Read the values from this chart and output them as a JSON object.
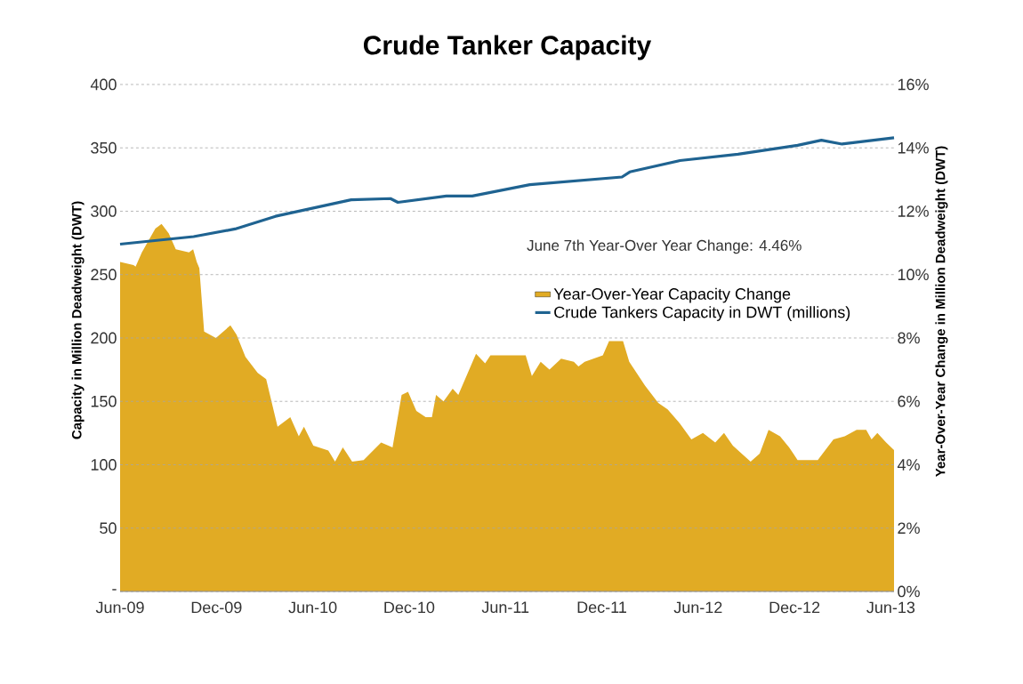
{
  "chart_data": {
    "type": "line",
    "title": "Crude Tanker Capacity",
    "ylabel": "Capacity in Million Deadweight (DWT)",
    "y2label": "Year-Over-Year Change in Million Deadweight (DWT)",
    "annotations": [
      "June 7th Year-Over Year Change: 4.46%"
    ],
    "xlim": [
      "2009-06-01",
      "2013-06-07"
    ],
    "xticks": [
      {
        "value": "2009-06",
        "label": "Jun-09"
      },
      {
        "value": "2009-12",
        "label": "Dec-09"
      },
      {
        "value": "2010-06",
        "label": "Jun-10"
      },
      {
        "value": "2010-12",
        "label": "Dec-10"
      },
      {
        "value": "2011-06",
        "label": "Jun-11"
      },
      {
        "value": "2011-12",
        "label": "Dec-11"
      },
      {
        "value": "2012-06",
        "label": "Jun-12"
      },
      {
        "value": "2012-12",
        "label": "Dec-12"
      },
      {
        "value": "2013-06",
        "label": "Jun-13"
      }
    ],
    "ylim": [
      0,
      400
    ],
    "yticks": [
      {
        "value": 0,
        "label": "-"
      },
      50,
      100,
      150,
      200,
      250,
      300,
      350,
      400
    ],
    "y2lim": [
      0,
      16
    ],
    "y2ticks": [
      {
        "value": 0,
        "label": "0%"
      },
      {
        "value": 2,
        "label": "2%"
      },
      {
        "value": 4,
        "label": "4%"
      },
      {
        "value": 6,
        "label": "6%"
      },
      {
        "value": 8,
        "label": "8%"
      },
      {
        "value": 10,
        "label": "10%"
      },
      {
        "value": 12,
        "label": "12%"
      },
      {
        "value": 14,
        "label": "14%"
      },
      {
        "value": 16,
        "label": "16%"
      }
    ],
    "grid": "y",
    "legend": "right",
    "series": [
      {
        "name": "Year-Over-Year Capacity Change",
        "type": "area",
        "axis": "y2",
        "color": "#e1ab24",
        "x": [
          "2009-06-01",
          "2009-06-26",
          "2009-06-30",
          "2009-07-12",
          "2009-08-07",
          "2009-08-19",
          "2009-09-02",
          "2009-09-15",
          "2009-10-10",
          "2009-10-18",
          "2009-10-25",
          "2009-10-30",
          "2009-11-08",
          "2009-11-30",
          "2009-12-28",
          "2010-01-09",
          "2010-01-26",
          "2010-02-17",
          "2010-03-04",
          "2010-03-26",
          "2010-04-19",
          "2010-05-05",
          "2010-05-15",
          "2010-06-02",
          "2010-06-30",
          "2010-07-13",
          "2010-07-28",
          "2010-08-15",
          "2010-09-06",
          "2010-10-09",
          "2010-10-31",
          "2010-11-17",
          "2010-11-29",
          "2010-12-15",
          "2011-01-02",
          "2011-01-14",
          "2011-01-22",
          "2011-02-05",
          "2011-02-21",
          "2011-03-03",
          "2011-04-06",
          "2011-04-23",
          "2011-05-03",
          "2011-07-09",
          "2011-07-21",
          "2011-08-07",
          "2011-08-24",
          "2011-09-15",
          "2011-10-09",
          "2011-10-18",
          "2011-10-30",
          "2011-12-03",
          "2011-12-15",
          "2012-01-11",
          "2012-01-23",
          "2012-02-21",
          "2012-03-17",
          "2012-04-04",
          "2012-04-27",
          "2012-05-19",
          "2012-06-10",
          "2012-07-03",
          "2012-07-20",
          "2012-08-06",
          "2012-09-09",
          "2012-09-26",
          "2012-10-13",
          "2012-11-04",
          "2012-11-21",
          "2012-12-07",
          "2013-01-15",
          "2013-02-13",
          "2013-03-05",
          "2013-03-28",
          "2013-04-15",
          "2013-04-25",
          "2013-05-06",
          "2013-05-23",
          "2013-06-07"
        ],
        "values": [
          10.4,
          10.3,
          10.25,
          10.7,
          11.45,
          11.6,
          11.3,
          10.8,
          10.7,
          10.8,
          10.4,
          10.2,
          8.2,
          8.0,
          8.4,
          8.1,
          7.4,
          6.9,
          6.7,
          5.2,
          5.5,
          4.9,
          5.2,
          4.6,
          4.45,
          4.1,
          4.55,
          4.1,
          4.15,
          4.7,
          4.55,
          6.2,
          6.3,
          5.7,
          5.5,
          5.5,
          6.2,
          6.0,
          6.4,
          6.2,
          7.5,
          7.2,
          7.45,
          7.45,
          6.8,
          7.25,
          7.0,
          7.35,
          7.25,
          7.1,
          7.25,
          7.45,
          7.9,
          7.9,
          7.25,
          6.5,
          5.95,
          5.75,
          5.3,
          4.8,
          5.0,
          4.7,
          5.0,
          4.6,
          4.1,
          4.35,
          5.1,
          4.9,
          4.55,
          4.15,
          4.15,
          4.8,
          4.9,
          5.1,
          5.1,
          4.8,
          5.0,
          4.7,
          4.46
        ]
      },
      {
        "name": "Crude Tankers Capacity in DWT (millions)",
        "color": "#1f6391",
        "x": [
          "2009-06-01",
          "2009-10-19",
          "2010-01-06",
          "2010-03-22",
          "2010-08-13",
          "2010-10-27",
          "2010-11-10",
          "2011-02-10",
          "2011-03-30",
          "2011-07-17",
          "2012-01-09",
          "2012-01-24",
          "2012-04-27",
          "2012-08-16",
          "2012-12-07",
          "2013-01-22",
          "2013-02-28",
          "2013-06-07"
        ],
        "values": [
          274,
          280,
          286,
          296,
          309,
          310,
          307,
          312,
          312,
          321,
          327,
          331,
          340,
          345,
          352,
          356,
          353,
          358
        ]
      }
    ]
  }
}
